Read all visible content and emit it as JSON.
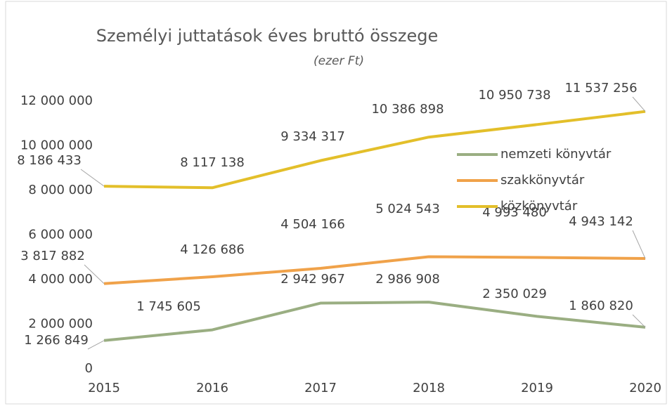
{
  "chart_data": {
    "type": "line",
    "title": "Személyi juttatások éves bruttó összege",
    "subtitle": "(ezer Ft)",
    "categories": [
      "2015",
      "2016",
      "2017",
      "2018",
      "2019",
      "2020"
    ],
    "series": [
      {
        "name": "nemzeti könyvtár",
        "color": "#9aae82",
        "values": [
          1266849,
          1745605,
          2942967,
          2986908,
          2350029,
          1860820
        ],
        "value_labels": [
          "1 266 849",
          "1 745 605",
          "2 942 967",
          "2 986 908",
          "2 350 029",
          "1 860 820"
        ]
      },
      {
        "name": "szakkönyvtár",
        "color": "#f0a24a",
        "values": [
          3817882,
          4126686,
          4504166,
          5024543,
          4993480,
          4943142
        ],
        "value_labels": [
          "3 817 882",
          "4 126 686",
          "4 504 166",
          "5 024 543",
          "4 993 480",
          "4 943 142"
        ]
      },
      {
        "name": "közkönyvtár",
        "color": "#e3bf2a",
        "values": [
          8186433,
          8117138,
          9334317,
          10386898,
          10950738,
          11537256
        ],
        "value_labels": [
          "8 186 433",
          "8 117 138",
          "9 334 317",
          "10 386 898",
          "10 950 738",
          "11 537 256"
        ]
      }
    ],
    "ylim": [
      0,
      12000000
    ],
    "yticks": [
      0,
      {
        "value": 2000000,
        "label": "2 000 000"
      },
      {
        "value": 4000000,
        "label": "4 000 000"
      },
      {
        "value": 6000000,
        "label": "6 000 000"
      },
      {
        "value": 8000000,
        "label": "8 000 000"
      },
      {
        "value": 10000000,
        "label": "10 000 000"
      },
      {
        "value": 12000000,
        "label": "12 000 000"
      }
    ],
    "legend": "right",
    "grid": false
  }
}
